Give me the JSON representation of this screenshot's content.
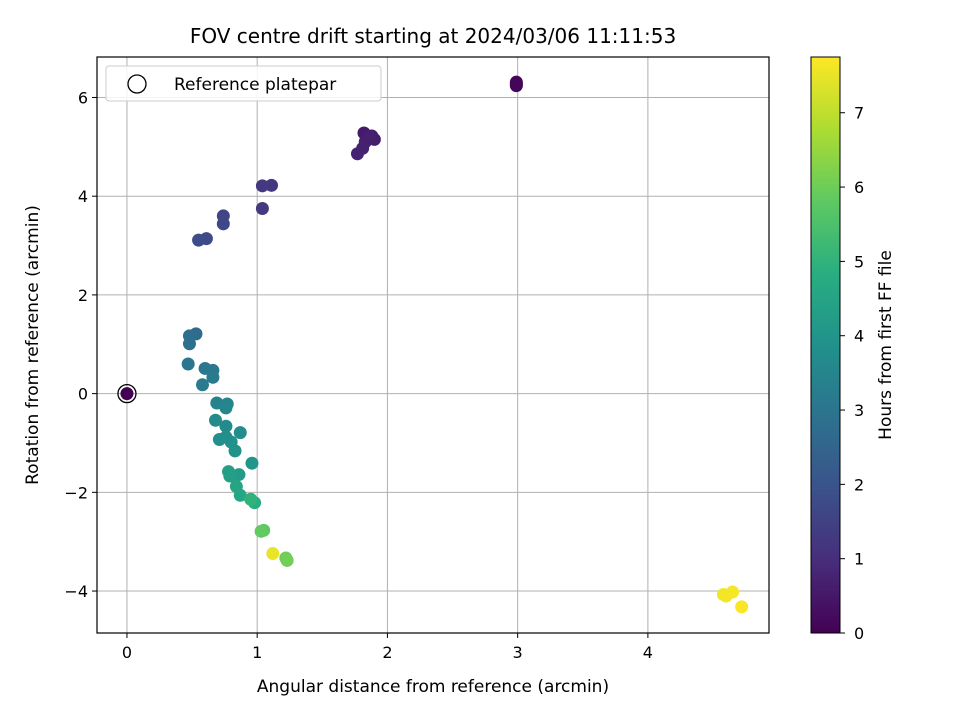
{
  "chart_data": {
    "type": "scatter",
    "title": "FOV centre drift starting at 2024/03/06 11:11:53",
    "xlabel": "Angular distance from reference (arcmin)",
    "ylabel": "Rotation from reference (arcmin)",
    "xlim": [
      -0.23,
      4.93
    ],
    "ylim": [
      -4.85,
      6.82
    ],
    "xticks": [
      0,
      1,
      2,
      3,
      4
    ],
    "yticks": [
      -4,
      -2,
      0,
      2,
      4,
      6
    ],
    "grid": true,
    "legend": {
      "position": "top-left",
      "label": "Reference platepar"
    },
    "colorbar": {
      "label": "Hours from first FF file",
      "range": [
        0,
        7.75
      ],
      "ticks": [
        0,
        1,
        2,
        3,
        4,
        5,
        6,
        7
      ],
      "colormap": "viridis"
    },
    "reference_point": {
      "x": 0,
      "y": 0
    },
    "points": [
      {
        "x": 0.0,
        "y": 0.0,
        "hours": 0.0
      },
      {
        "x": 2.99,
        "y": 6.31,
        "hours": 0.05
      },
      {
        "x": 2.99,
        "y": 6.24,
        "hours": 0.08
      },
      {
        "x": 2.99,
        "y": 6.27,
        "hours": 0.1
      },
      {
        "x": 1.82,
        "y": 5.28,
        "hours": 0.55
      },
      {
        "x": 1.88,
        "y": 5.22,
        "hours": 0.6
      },
      {
        "x": 1.9,
        "y": 5.15,
        "hours": 0.62
      },
      {
        "x": 1.83,
        "y": 5.1,
        "hours": 0.65
      },
      {
        "x": 1.81,
        "y": 4.97,
        "hours": 0.7
      },
      {
        "x": 1.77,
        "y": 4.86,
        "hours": 0.75
      },
      {
        "x": 1.86,
        "y": 5.19,
        "hours": 0.68
      },
      {
        "x": 1.11,
        "y": 4.22,
        "hours": 1.2
      },
      {
        "x": 1.04,
        "y": 4.21,
        "hours": 1.25
      },
      {
        "x": 1.04,
        "y": 3.75,
        "hours": 1.3
      },
      {
        "x": 0.74,
        "y": 3.6,
        "hours": 1.6
      },
      {
        "x": 0.74,
        "y": 3.44,
        "hours": 1.65
      },
      {
        "x": 0.61,
        "y": 3.14,
        "hours": 1.75
      },
      {
        "x": 0.55,
        "y": 3.11,
        "hours": 1.8
      },
      {
        "x": 0.53,
        "y": 1.21,
        "hours": 2.7
      },
      {
        "x": 0.48,
        "y": 1.17,
        "hours": 2.75
      },
      {
        "x": 0.48,
        "y": 1.01,
        "hours": 2.8
      },
      {
        "x": 0.47,
        "y": 0.6,
        "hours": 3.0
      },
      {
        "x": 0.6,
        "y": 0.51,
        "hours": 3.05
      },
      {
        "x": 0.66,
        "y": 0.47,
        "hours": 3.1
      },
      {
        "x": 0.66,
        "y": 0.33,
        "hours": 3.15
      },
      {
        "x": 0.58,
        "y": 0.18,
        "hours": 3.2
      },
      {
        "x": 0.69,
        "y": -0.19,
        "hours": 3.45
      },
      {
        "x": 0.77,
        "y": -0.21,
        "hours": 3.5
      },
      {
        "x": 0.76,
        "y": -0.29,
        "hours": 3.55
      },
      {
        "x": 0.68,
        "y": -0.54,
        "hours": 3.65
      },
      {
        "x": 0.76,
        "y": -0.66,
        "hours": 3.7
      },
      {
        "x": 0.87,
        "y": -0.79,
        "hours": 3.75
      },
      {
        "x": 0.71,
        "y": -0.93,
        "hours": 3.85
      },
      {
        "x": 0.8,
        "y": -0.98,
        "hours": 3.9
      },
      {
        "x": 0.76,
        "y": -0.88,
        "hours": 3.8
      },
      {
        "x": 0.83,
        "y": -1.16,
        "hours": 3.95
      },
      {
        "x": 0.96,
        "y": -1.41,
        "hours": 4.05
      },
      {
        "x": 0.86,
        "y": -1.64,
        "hours": 4.2
      },
      {
        "x": 0.78,
        "y": -1.58,
        "hours": 4.3
      },
      {
        "x": 0.79,
        "y": -1.67,
        "hours": 4.35
      },
      {
        "x": 0.84,
        "y": -1.88,
        "hours": 4.5
      },
      {
        "x": 0.87,
        "y": -2.06,
        "hours": 4.6
      },
      {
        "x": 0.98,
        "y": -2.21,
        "hours": 4.8
      },
      {
        "x": 0.95,
        "y": -2.14,
        "hours": 5.0
      },
      {
        "x": 1.05,
        "y": -2.77,
        "hours": 5.8
      },
      {
        "x": 1.03,
        "y": -2.79,
        "hours": 5.85
      },
      {
        "x": 1.22,
        "y": -3.33,
        "hours": 6.0
      },
      {
        "x": 1.23,
        "y": -3.38,
        "hours": 6.05
      },
      {
        "x": 1.12,
        "y": -3.24,
        "hours": 7.5
      },
      {
        "x": 4.58,
        "y": -4.07,
        "hours": 7.6
      },
      {
        "x": 4.6,
        "y": -4.1,
        "hours": 7.62
      },
      {
        "x": 4.65,
        "y": -4.02,
        "hours": 7.65
      },
      {
        "x": 4.72,
        "y": -4.32,
        "hours": 7.7
      }
    ]
  }
}
